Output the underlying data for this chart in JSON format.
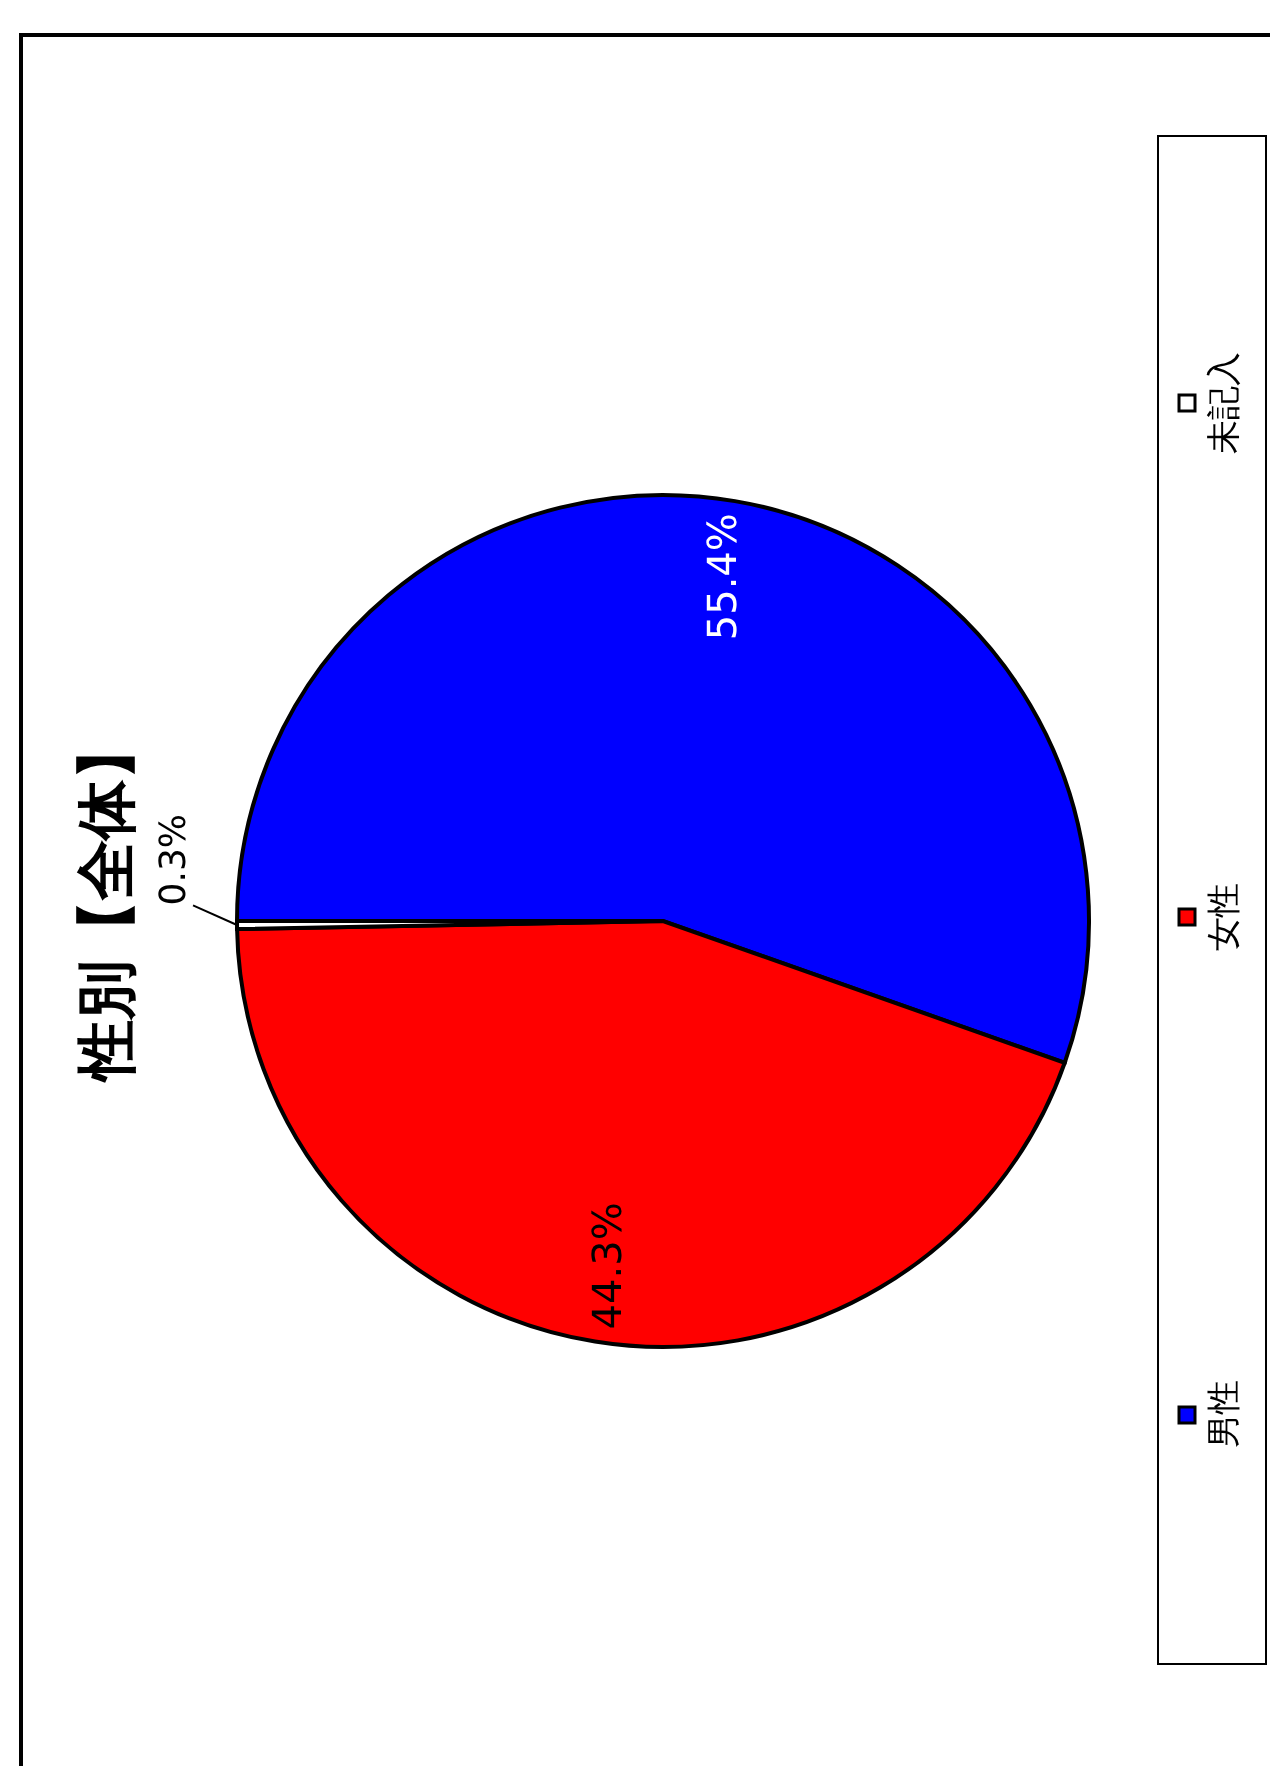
{
  "chart_data": {
    "type": "pie",
    "title": "性別【全体】",
    "categories": [
      "男性",
      "女性",
      "未記入"
    ],
    "values": [
      55.4,
      44.3,
      0.3
    ],
    "colors": [
      "#0000ff",
      "#ff0000",
      "#ffffff"
    ],
    "value_labels": [
      "55.4%",
      "44.3%",
      "0.3%"
    ],
    "legend": "right"
  }
}
